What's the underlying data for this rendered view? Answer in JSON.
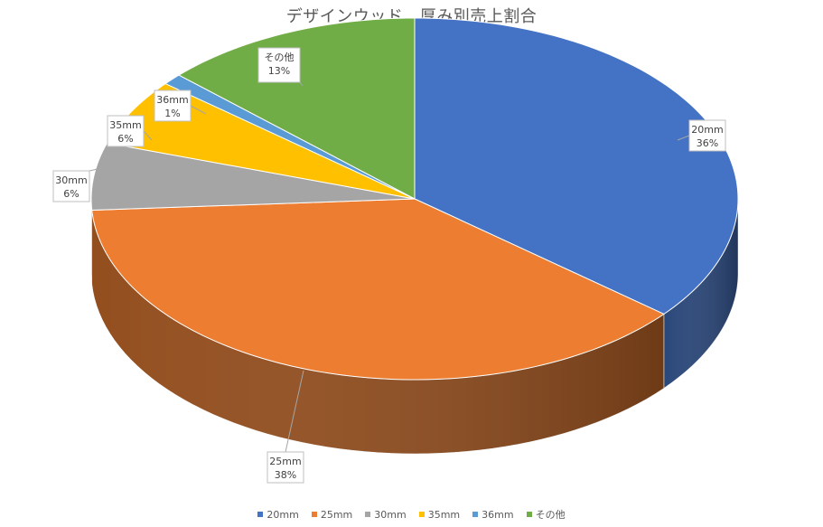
{
  "chart_data": {
    "type": "pie",
    "title": "デザインウッド　厚み別売上割合",
    "categories": [
      "20mm",
      "25mm",
      "30mm",
      "35mm",
      "36mm",
      "その他"
    ],
    "values": [
      36,
      38,
      6,
      6,
      1,
      13
    ],
    "value_labels": [
      "36%",
      "38%",
      "6%",
      "6%",
      "1%",
      "13%"
    ],
    "colors": [
      "#4472C4",
      "#ED7D31",
      "#A5A5A5",
      "#FFC000",
      "#5B9BD5",
      "#70AD47"
    ],
    "legend_position": "bottom",
    "style": "3d-pie"
  }
}
